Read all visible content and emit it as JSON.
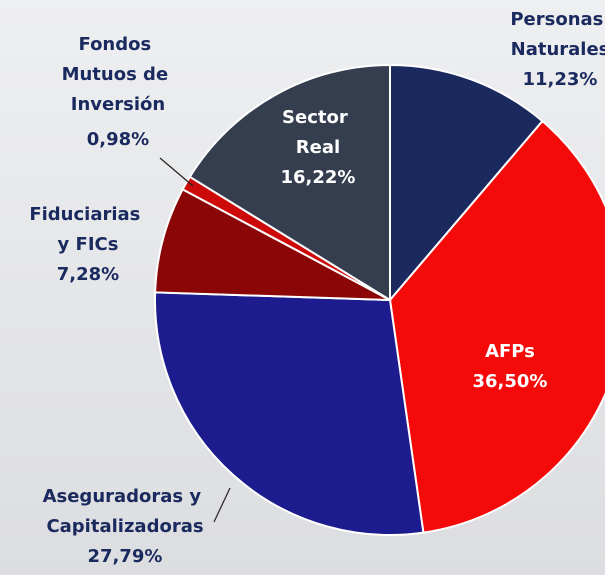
{
  "chart_data": {
    "type": "pie",
    "categories": [
      "Personas Naturales",
      "AFPs",
      "Aseguradoras y Capitalizadoras",
      "Fiduciarias y FICs",
      "Fondos Mutuos de Inversión",
      "Sector Real"
    ],
    "values": [
      11.23,
      36.5,
      27.79,
      7.28,
      0.98,
      16.22
    ],
    "value_labels": [
      "11,23%",
      "36,50%",
      "27,79%",
      "7,28%",
      "0,98%",
      "16,22%"
    ],
    "colors": [
      "#1b2a5e",
      "#f50a0a",
      "#1c1c8e",
      "#8b0606",
      "#cc0a0a",
      "#343e4f"
    ]
  }
}
